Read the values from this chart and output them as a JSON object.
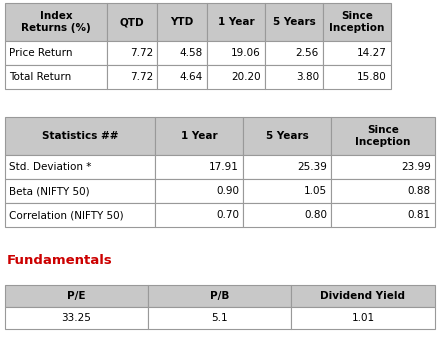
{
  "table1_headers": [
    "Index\nReturns (%)",
    "QTD",
    "YTD",
    "1 Year",
    "5 Years",
    "Since\nInception"
  ],
  "table1_rows": [
    [
      "Price Return",
      "7.72",
      "4.58",
      "19.06",
      "2.56",
      "14.27"
    ],
    [
      "Total Return",
      "7.72",
      "4.64",
      "20.20",
      "3.80",
      "15.80"
    ]
  ],
  "table2_headers": [
    "Statistics ##",
    "1 Year",
    "5 Years",
    "Since\nInception"
  ],
  "table2_rows": [
    [
      "Std. Deviation *",
      "17.91",
      "25.39",
      "23.99"
    ],
    [
      "Beta (NIFTY 50)",
      "0.90",
      "1.05",
      "0.88"
    ],
    [
      "Correlation (NIFTY 50)",
      "0.70",
      "0.80",
      "0.81"
    ]
  ],
  "fundamentals_label": "Fundamentals",
  "table3_headers": [
    "P/E",
    "P/B",
    "Dividend Yield"
  ],
  "table3_rows": [
    [
      "33.25",
      "5.1",
      "1.01"
    ]
  ],
  "header_bg": "#c8c8c8",
  "row_bg": "#ffffff",
  "border_color": "#999999",
  "header_text_color": "#000000",
  "row_text_color": "#000000",
  "fundamentals_color": "#cc0000",
  "header_fontsize": 7.5,
  "row_fontsize": 7.5,
  "fundamentals_fontsize": 9.5
}
